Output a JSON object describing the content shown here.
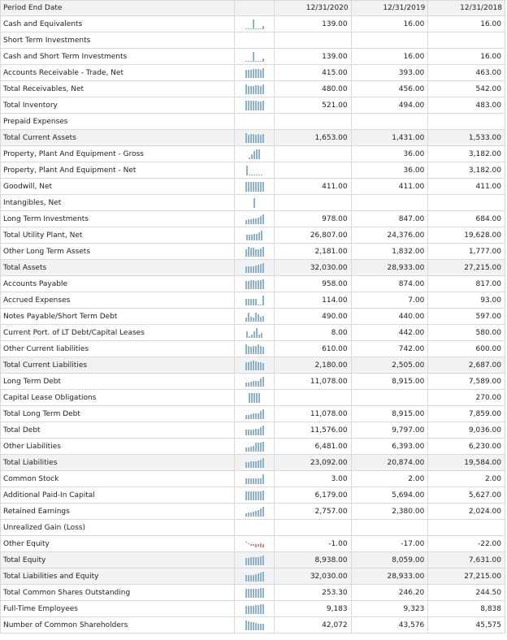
{
  "header": {
    "label": "Period End Date",
    "periods": [
      "12/31/2020",
      "12/31/2019",
      "12/31/2018"
    ]
  },
  "colors": {
    "sparkline_positive": "#8fb2cc",
    "sparkline_negative": "#cf8d94",
    "total_row_bg": "#f2f2f2",
    "grid": "#d9d9d9"
  },
  "rows": [
    {
      "label": "Cash and Equivalents",
      "values": [
        "139.00",
        "16.00",
        "16.00"
      ],
      "total": false,
      "spark": [
        0.1,
        0,
        0,
        1,
        0,
        0,
        0,
        0.3
      ]
    },
    {
      "label": "Short Term Investments",
      "values": [
        "",
        "",
        ""
      ],
      "total": false,
      "spark": []
    },
    {
      "label": "Cash and Short Term Investments",
      "values": [
        "139.00",
        "16.00",
        "16.00"
      ],
      "total": false,
      "spark": [
        0.1,
        0,
        0,
        1,
        0,
        0,
        0,
        0.3
      ]
    },
    {
      "label": "Accounts Receivable - Trade, Net",
      "values": [
        "415.00",
        "393.00",
        "463.00"
      ],
      "total": false,
      "spark": [
        0.85,
        0.85,
        0.8,
        0.9,
        0.9,
        0.95,
        0.8,
        1
      ]
    },
    {
      "label": "Total Receivables, Net",
      "values": [
        "480.00",
        "456.00",
        "542.00"
      ],
      "total": false,
      "spark": [
        1,
        0.85,
        0.85,
        0.85,
        0.9,
        0.95,
        0.8,
        1
      ]
    },
    {
      "label": "Total Inventory",
      "values": [
        "521.00",
        "494.00",
        "483.00"
      ],
      "total": false,
      "spark": [
        1,
        1,
        1,
        1,
        1,
        0.9,
        0.9,
        1
      ]
    },
    {
      "label": "Prepaid Expenses",
      "values": [
        "",
        "",
        ""
      ],
      "total": false,
      "spark": []
    },
    {
      "label": "Total Current Assets",
      "values": [
        "1,653.00",
        "1,431.00",
        "1,533.00"
      ],
      "total": true,
      "spark": [
        1,
        0.85,
        0.95,
        0.9,
        0.85,
        0.9,
        0.85,
        0.95
      ]
    },
    {
      "label": "Property, Plant And Equipment - Gross",
      "values": [
        "",
        "36.00",
        "3,182.00"
      ],
      "total": false,
      "spark": [
        0.2,
        0.5,
        0.8,
        1,
        1
      ]
    },
    {
      "label": "Property, Plant And Equipment - Net",
      "values": [
        "",
        "36.00",
        "3,182.00"
      ],
      "total": false,
      "spark": [
        1,
        0.1,
        0.1,
        0.1,
        0.1,
        0.1,
        0.1
      ]
    },
    {
      "label": "Goodwill, Net",
      "values": [
        "411.00",
        "411.00",
        "411.00"
      ],
      "total": false,
      "spark": [
        1,
        1,
        1,
        1,
        1,
        1,
        1,
        1
      ]
    },
    {
      "label": "Intangibles, Net",
      "values": [
        "",
        "",
        ""
      ],
      "total": false,
      "spark": [
        1
      ]
    },
    {
      "label": "Long Term Investments",
      "values": [
        "978.00",
        "847.00",
        "684.00"
      ],
      "total": false,
      "spark": [
        0.45,
        0.5,
        0.5,
        0.55,
        0.6,
        0.7,
        0.85,
        1
      ]
    },
    {
      "label": "Total Utility Plant, Net",
      "values": [
        "26,807.00",
        "24,376.00",
        "19,628.00"
      ],
      "total": false,
      "spark": [
        0.55,
        0.55,
        0.6,
        0.65,
        0.7,
        0.85,
        1
      ]
    },
    {
      "label": "Other Long Term Assets",
      "values": [
        "2,181.00",
        "1,832.00",
        "1,777.00"
      ],
      "total": false,
      "spark": [
        0.75,
        1,
        0.9,
        0.9,
        0.75,
        0.75,
        0.8,
        1
      ]
    },
    {
      "label": "Total Assets",
      "values": [
        "32,030.00",
        "28,933.00",
        "27,215.00"
      ],
      "total": true,
      "spark": [
        0.65,
        0.65,
        0.7,
        0.7,
        0.75,
        0.8,
        0.9,
        1
      ]
    },
    {
      "label": "Accounts Payable",
      "values": [
        "958.00",
        "874.00",
        "817.00"
      ],
      "total": false,
      "spark": [
        0.85,
        0.8,
        0.9,
        0.95,
        0.8,
        0.95,
        0.9,
        1
      ]
    },
    {
      "label": "Accrued Expenses",
      "values": [
        "114.00",
        "7.00",
        "93.00"
      ],
      "total": false,
      "spark": [
        0.65,
        0.65,
        0.65,
        0.7,
        0.7,
        0.1,
        0.1,
        1
      ]
    },
    {
      "label": "Notes Payable/Short Term Debt",
      "values": [
        "490.00",
        "440.00",
        "597.00"
      ],
      "total": false,
      "spark": [
        0.4,
        0.9,
        0.5,
        0.45,
        0.9,
        0.75,
        0.5,
        0.55
      ]
    },
    {
      "label": "Current Port. of LT Debt/Capital Leases",
      "values": [
        "8.00",
        "442.00",
        "580.00"
      ],
      "total": false,
      "spark": [
        0.7,
        0.15,
        0.3,
        0.7,
        1,
        0.35,
        0.5
      ]
    },
    {
      "label": "Other Current liabilities",
      "values": [
        "610.00",
        "742.00",
        "600.00"
      ],
      "total": false,
      "spark": [
        1,
        0.8,
        0.75,
        0.85,
        0.8,
        1,
        0.85,
        0.75
      ]
    },
    {
      "label": "Total Current Liabilities",
      "values": [
        "2,180.00",
        "2,505.00",
        "2,687.00"
      ],
      "total": true,
      "spark": [
        0.85,
        0.8,
        0.9,
        1,
        0.95,
        0.85,
        0.8,
        0.75
      ]
    },
    {
      "label": "Long Term Debt",
      "values": [
        "11,078.00",
        "8,915.00",
        "7,589.00"
      ],
      "total": false,
      "spark": [
        0.45,
        0.45,
        0.5,
        0.55,
        0.55,
        0.6,
        0.8,
        1
      ]
    },
    {
      "label": "Capital Lease Obligations",
      "values": [
        "",
        "",
        "270.00"
      ],
      "total": false,
      "spark": [
        1,
        1,
        1,
        1,
        1
      ]
    },
    {
      "label": "Total Long Term Debt",
      "values": [
        "11,078.00",
        "8,915.00",
        "7,859.00"
      ],
      "total": false,
      "spark": [
        0.45,
        0.45,
        0.5,
        0.55,
        0.55,
        0.6,
        0.8,
        1
      ]
    },
    {
      "label": "Total Debt",
      "values": [
        "11,576.00",
        "9,797.00",
        "9,036.00"
      ],
      "total": false,
      "spark": [
        0.55,
        0.55,
        0.6,
        0.6,
        0.65,
        0.7,
        0.85,
        1
      ]
    },
    {
      "label": "Other Liabilities",
      "values": [
        "6,481.00",
        "6,393.00",
        "6,230.00"
      ],
      "total": false,
      "spark": [
        0.4,
        0.45,
        0.5,
        0.55,
        0.9,
        0.95,
        0.95,
        1
      ]
    },
    {
      "label": "Total Liabilities",
      "values": [
        "23,092.00",
        "20,874.00",
        "19,584.00"
      ],
      "total": true,
      "spark": [
        0.6,
        0.6,
        0.65,
        0.7,
        0.7,
        0.75,
        0.85,
        1
      ]
    },
    {
      "label": "Common Stock",
      "values": [
        "3.00",
        "2.00",
        "2.00"
      ],
      "total": false,
      "spark": [
        0.6,
        0.6,
        0.6,
        0.6,
        0.6,
        0.6,
        0.6,
        1
      ]
    },
    {
      "label": "Additional Paid-In Capital",
      "values": [
        "6,179.00",
        "5,694.00",
        "5,627.00"
      ],
      "total": false,
      "spark": [
        0.9,
        0.9,
        0.9,
        0.9,
        0.9,
        0.9,
        0.95,
        1
      ]
    },
    {
      "label": "Retained Earnings",
      "values": [
        "2,757.00",
        "2,380.00",
        "2,024.00"
      ],
      "total": false,
      "spark": [
        0.35,
        0.4,
        0.45,
        0.5,
        0.6,
        0.7,
        0.85,
        1
      ]
    },
    {
      "label": "Unrealized Gain (Loss)",
      "values": [
        "",
        "",
        ""
      ],
      "total": false,
      "spark": []
    },
    {
      "label": "Other Equity",
      "values": [
        "-1.00",
        "-17.00",
        "-22.00"
      ],
      "total": false,
      "spark": [
        0.15,
        -0.1,
        -0.25,
        -0.4,
        -0.7,
        -0.5,
        -0.8,
        -0.6
      ],
      "negative": true
    },
    {
      "label": "Total Equity",
      "values": [
        "8,938.00",
        "8,059.00",
        "7,631.00"
      ],
      "total": true,
      "spark": [
        0.75,
        0.75,
        0.8,
        0.8,
        0.85,
        0.85,
        0.9,
        1
      ]
    },
    {
      "label": "Total Liabilities and Equity",
      "values": [
        "32,030.00",
        "28,933.00",
        "27,215.00"
      ],
      "total": true,
      "spark": [
        0.65,
        0.65,
        0.7,
        0.7,
        0.75,
        0.8,
        0.9,
        1
      ]
    },
    {
      "label": "Total Common Shares Outstanding",
      "values": [
        "253.30",
        "246.20",
        "244.50"
      ],
      "total": false,
      "spark": [
        0.95,
        0.95,
        0.95,
        0.95,
        0.95,
        0.95,
        0.97,
        1
      ]
    },
    {
      "label": "Full-Time Employees",
      "values": [
        "9,183",
        "9,323",
        "8,838"
      ],
      "total": false,
      "spark": [
        0.85,
        0.85,
        0.85,
        0.85,
        0.9,
        0.95,
        1,
        0.98
      ]
    },
    {
      "label": "Number of Common Shareholders",
      "values": [
        "42,072",
        "43,576",
        "45,575"
      ],
      "total": false,
      "spark": [
        1,
        0.95,
        0.85,
        0.8,
        0.75,
        0.7,
        0.7,
        0.65
      ]
    }
  ]
}
